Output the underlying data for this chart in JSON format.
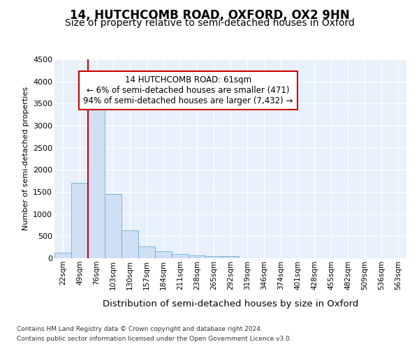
{
  "title1": "14, HUTCHCOMB ROAD, OXFORD, OX2 9HN",
  "title2": "Size of property relative to semi-detached houses in Oxford",
  "xlabel": "Distribution of semi-detached houses by size in Oxford",
  "ylabel": "Number of semi-detached properties",
  "bar_values": [
    130,
    1700,
    3500,
    1450,
    625,
    270,
    160,
    90,
    60,
    50,
    40,
    0,
    0,
    0,
    0,
    0,
    0,
    0,
    0,
    0,
    0
  ],
  "bin_labels": [
    "22sqm",
    "49sqm",
    "76sqm",
    "103sqm",
    "130sqm",
    "157sqm",
    "184sqm",
    "211sqm",
    "238sqm",
    "265sqm",
    "292sqm",
    "319sqm",
    "346sqm",
    "374sqm",
    "401sqm",
    "428sqm",
    "455sqm",
    "482sqm",
    "509sqm",
    "536sqm",
    "563sqm"
  ],
  "bar_color": "#cfe0f5",
  "bar_edge_color": "#6aaed6",
  "vline_color": "#cc0000",
  "annotation_text": "14 HUTCHCOMB ROAD: 61sqm\n← 6% of semi-detached houses are smaller (471)\n94% of semi-detached houses are larger (7,432) →",
  "annotation_box_facecolor": "white",
  "annotation_box_edgecolor": "#cc0000",
  "ylim": [
    0,
    4500
  ],
  "yticks": [
    0,
    500,
    1000,
    1500,
    2000,
    2500,
    3000,
    3500,
    4000,
    4500
  ],
  "footer1": "Contains HM Land Registry data © Crown copyright and database right 2024.",
  "footer2": "Contains public sector information licensed under the Open Government Licence v3.0.",
  "plot_bg_color": "#e8f0fb",
  "title_fontsize": 12,
  "subtitle_fontsize": 10
}
